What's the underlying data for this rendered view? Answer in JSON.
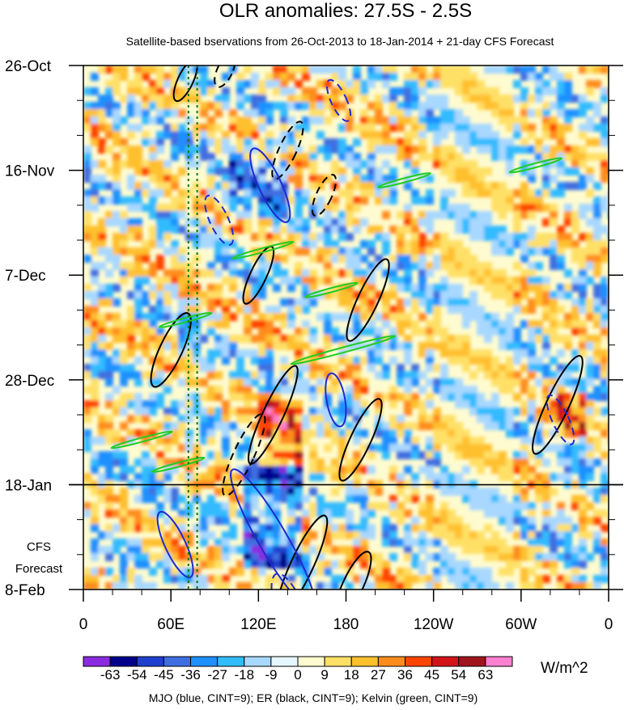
{
  "chart_data": {
    "type": "heatmap",
    "title": "OLR anomalies: 27.5S - 2.5S",
    "subtitle": "Satellite-based bservations from 26-Oct-2013 to 18-Jan-2014 + 21-day CFS Forecast",
    "y_ticks": [
      "26-Oct",
      "16-Nov",
      "7-Dec",
      "28-Dec",
      "18-Jan",
      "8-Feb"
    ],
    "y_tick_days": [
      0,
      21,
      42,
      63,
      84,
      105
    ],
    "x_ticks": [
      "0",
      "60E",
      "120E",
      "180",
      "120W",
      "60W",
      "0"
    ],
    "x_tick_lon": [
      0,
      60,
      120,
      180,
      240,
      300,
      360
    ],
    "observation_end_label": "18-Jan",
    "forecast_label": [
      "CFS",
      "Forecast"
    ],
    "colorbar": {
      "labels": [
        "-63",
        "-54",
        "-45",
        "-36",
        "-27",
        "-18",
        "-9",
        "0",
        "9",
        "18",
        "27",
        "36",
        "45",
        "54",
        "63"
      ],
      "colors": [
        "#8a2be2",
        "#00008b",
        "#1f3fcf",
        "#3f6ee0",
        "#1e90ff",
        "#33bbff",
        "#a8d8ff",
        "#e6f7ff",
        "#fffbd0",
        "#ffe066",
        "#ffc02e",
        "#ff8c1a",
        "#ff4500",
        "#d2141a",
        "#a0141e",
        "#ff7fd0"
      ],
      "units": "W/m^2"
    },
    "footnote": "MJO (blue, CINT=9); ER (black, CINT=9); Kelvin (green, CINT=9)",
    "contours": {
      "mjo": [
        {
          "lon": 128,
          "day": 24,
          "a": 9,
          "b": 2.2,
          "rot": -25,
          "dashed": false
        },
        {
          "lon": 93,
          "day": 31,
          "a": 6,
          "b": 1.8,
          "rot": -25,
          "dashed": true
        },
        {
          "lon": 130,
          "day": 95,
          "a": 18,
          "b": 2.8,
          "rot": -30,
          "dashed": false
        },
        {
          "lon": 63,
          "day": 96,
          "a": 8,
          "b": 2,
          "rot": -25,
          "dashed": false
        },
        {
          "lon": 175,
          "day": 7,
          "a": 5,
          "b": 1.5,
          "rot": -25,
          "dashed": true
        },
        {
          "lon": 327,
          "day": 71,
          "a": 6,
          "b": 1.6,
          "rot": -25,
          "dashed": true
        },
        {
          "lon": 145,
          "day": 112,
          "a": 12,
          "b": 3,
          "rot": -20,
          "dashed": true
        },
        {
          "lon": 173,
          "day": 67,
          "a": 6,
          "b": 1.8,
          "rot": -10,
          "dashed": false
        }
      ],
      "er": [
        {
          "lon": 70,
          "day": 3,
          "a": 5,
          "b": 1.5,
          "rot": 25,
          "dashed": false
        },
        {
          "lon": 97,
          "day": 1,
          "a": 4,
          "b": 1.5,
          "rot": 25,
          "dashed": true
        },
        {
          "lon": 140,
          "day": 17,
          "a": 7,
          "b": 1.7,
          "rot": 25,
          "dashed": true
        },
        {
          "lon": 165,
          "day": 26,
          "a": 5,
          "b": 1.5,
          "rot": 25,
          "dashed": true
        },
        {
          "lon": 120,
          "day": 42,
          "a": 7,
          "b": 1.6,
          "rot": 25,
          "dashed": false
        },
        {
          "lon": 195,
          "day": 47,
          "a": 10,
          "b": 2,
          "rot": 25,
          "dashed": false
        },
        {
          "lon": 60,
          "day": 57,
          "a": 9,
          "b": 2.2,
          "rot": 25,
          "dashed": false
        },
        {
          "lon": 110,
          "day": 78,
          "a": 10,
          "b": 2,
          "rot": 25,
          "dashed": true
        },
        {
          "lon": 130,
          "day": 70,
          "a": 12,
          "b": 2,
          "rot": 25,
          "dashed": false
        },
        {
          "lon": 190,
          "day": 75,
          "a": 10,
          "b": 2,
          "rot": 25,
          "dashed": false
        },
        {
          "lon": 325,
          "day": 68,
          "a": 12,
          "b": 2.2,
          "rot": 25,
          "dashed": false
        },
        {
          "lon": 185,
          "day": 104,
          "a": 8,
          "b": 2,
          "rot": 25,
          "dashed": false
        },
        {
          "lon": 150,
          "day": 100,
          "a": 12,
          "b": 2.2,
          "rot": 25,
          "dashed": false
        }
      ],
      "kelvin": [
        {
          "lon": 178,
          "day": 57,
          "a": 12,
          "b": 0.5,
          "rot": 75,
          "dashed": false
        },
        {
          "lon": 220,
          "day": 23,
          "a": 6,
          "b": 0.4,
          "rot": 75,
          "dashed": false
        },
        {
          "lon": 170,
          "day": 45,
          "a": 6,
          "b": 0.4,
          "rot": 75,
          "dashed": false
        },
        {
          "lon": 123,
          "day": 37,
          "a": 7,
          "b": 0.4,
          "rot": 75,
          "dashed": false
        },
        {
          "lon": 70,
          "day": 51,
          "a": 6,
          "b": 0.4,
          "rot": 75,
          "dashed": false
        },
        {
          "lon": 40,
          "day": 75,
          "a": 7,
          "b": 0.4,
          "rot": 75,
          "dashed": false
        },
        {
          "lon": 65,
          "day": 80,
          "a": 6,
          "b": 0.4,
          "rot": 75,
          "dashed": false
        },
        {
          "lon": 310,
          "day": 20,
          "a": 6,
          "b": 0.4,
          "rot": 75,
          "dashed": false
        }
      ]
    },
    "reference_lon": [
      72,
      78
    ]
  }
}
